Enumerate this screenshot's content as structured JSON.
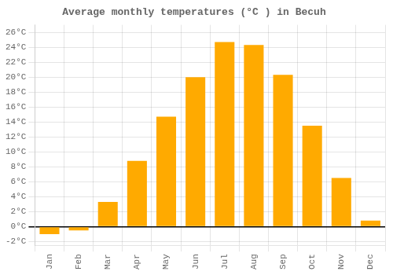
{
  "chart_data": {
    "type": "bar",
    "title": "Average monthly temperatures (°C ) in Becuh",
    "categories": [
      "Jan",
      "Feb",
      "Mar",
      "Apr",
      "May",
      "Jun",
      "Jul",
      "Aug",
      "Sep",
      "Oct",
      "Nov",
      "Dec"
    ],
    "values": [
      -1.0,
      -0.5,
      3.3,
      8.8,
      14.7,
      20.0,
      24.7,
      24.3,
      20.3,
      13.5,
      6.5,
      0.8
    ],
    "color": "#FFAA00",
    "ylim": [
      -2.5,
      27
    ],
    "yticks": [
      {
        "value": -2,
        "label": "-2°C"
      },
      {
        "value": 0,
        "label": "0°C"
      },
      {
        "value": 2,
        "label": "2°C"
      },
      {
        "value": 4,
        "label": "4°C"
      },
      {
        "value": 6,
        "label": "6°C"
      },
      {
        "value": 8,
        "label": "8°C"
      },
      {
        "value": 10,
        "label": "10°C"
      },
      {
        "value": 12,
        "label": "12°C"
      },
      {
        "value": 14,
        "label": "14°C"
      },
      {
        "value": 16,
        "label": "16°C"
      },
      {
        "value": 18,
        "label": "18°C"
      },
      {
        "value": 20,
        "label": "20°C"
      },
      {
        "value": 22,
        "label": "22°C"
      },
      {
        "value": 24,
        "label": "24°C"
      },
      {
        "value": 26,
        "label": "26°C"
      }
    ],
    "grid": true
  }
}
